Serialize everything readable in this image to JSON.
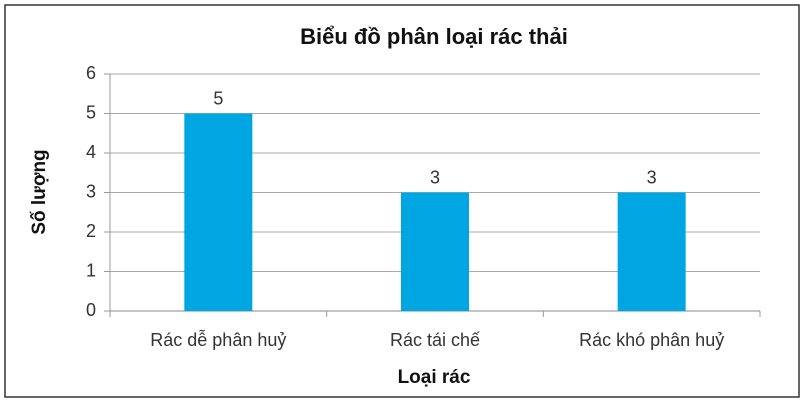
{
  "chart_data": {
    "type": "bar",
    "title": "Biểu đồ phân loại rác thải",
    "x_label": "Loại rác",
    "y_label": "Số lượng",
    "categories": [
      "Rác dễ phân huỷ",
      "Rác tái chế",
      "Rác khó phân huỷ"
    ],
    "values": [
      5,
      3,
      3
    ],
    "color": "#00a6e2",
    "ylim": [
      0,
      6
    ],
    "yticks": [
      0,
      1,
      2,
      3,
      4,
      5,
      6
    ],
    "grid": true
  }
}
